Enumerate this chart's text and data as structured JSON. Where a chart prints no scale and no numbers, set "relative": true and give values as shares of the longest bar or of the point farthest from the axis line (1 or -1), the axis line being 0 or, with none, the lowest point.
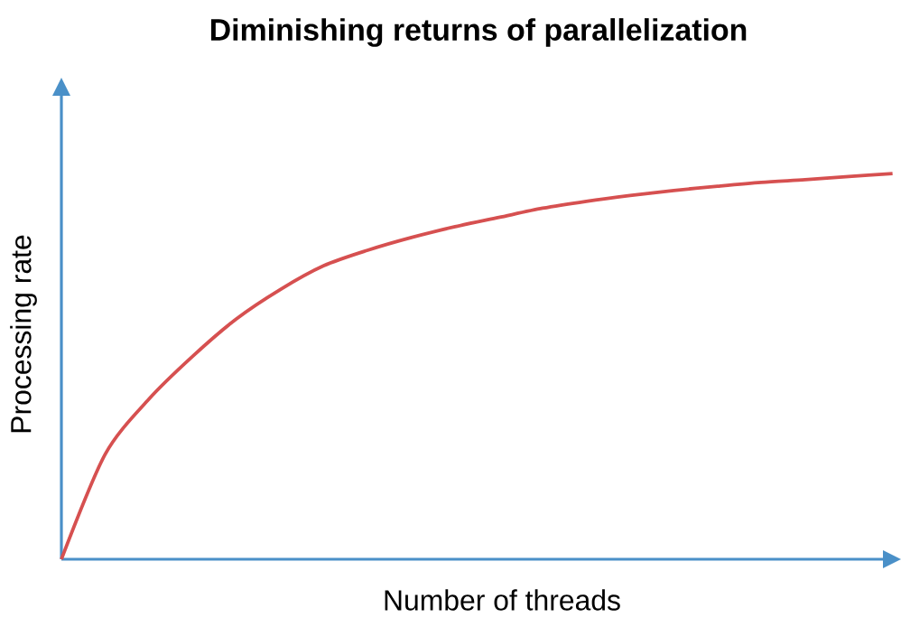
{
  "chart_data": {
    "type": "line",
    "title": "Diminishing returns of parallelization",
    "xlabel": "Number of threads",
    "ylabel": "Processing rate",
    "relative": true,
    "categories": [
      null,
      null,
      null,
      null,
      null,
      null,
      null,
      null,
      null,
      null,
      null,
      null,
      null,
      null,
      null,
      null,
      null,
      null,
      null,
      null
    ],
    "values": [
      0,
      0.272,
      0.415,
      0.526,
      0.623,
      0.699,
      0.761,
      0.801,
      0.834,
      0.862,
      0.886,
      0.91,
      0.928,
      0.943,
      0.956,
      0.967,
      0.977,
      0.984,
      0.992,
      1
    ],
    "color": "#d65050"
  }
}
